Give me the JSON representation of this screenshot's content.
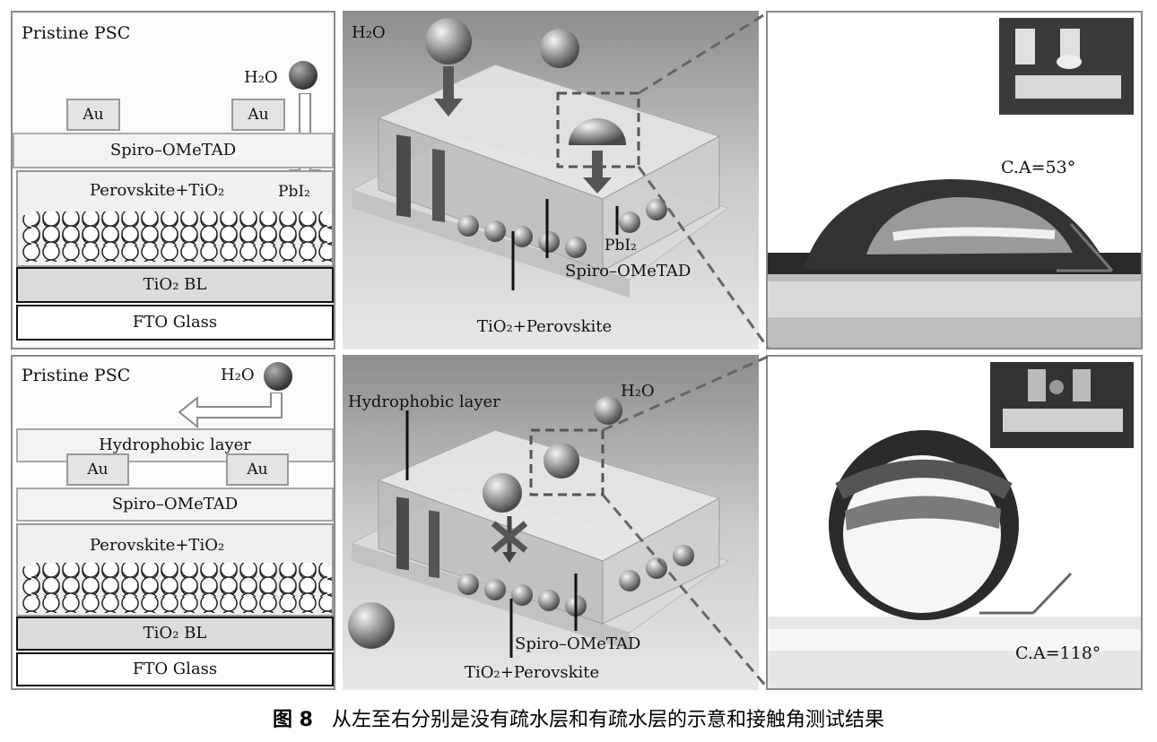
{
  "top_row": {
    "schematic": {
      "title": "Pristine PSC",
      "water": "H₂O",
      "au_left": "Au",
      "au_right": "Au",
      "spiro": "Spiro–OMeTAD",
      "perovskite": "Perovskite+TiO₂",
      "pbi2": "PbI₂",
      "tio2_bl": "TiO₂ BL",
      "fto": "FTO Glass"
    },
    "render": {
      "water": "H₂O",
      "pbi2": "PbI₂",
      "spiro": "Spiro–OMeTAD",
      "tio2_perovskite": "TiO₂+Perovskite"
    },
    "photo": {
      "contact_angle": "C.A=53°"
    }
  },
  "bottom_row": {
    "schematic": {
      "title": "Pristine PSC",
      "water": "H₂O",
      "hydrophobic": "Hydrophobic layer",
      "au_left": "Au",
      "au_right": "Au",
      "spiro": "Spiro–OMeTAD",
      "perovskite": "Perovskite+TiO₂",
      "tio2_bl": "TiO₂ BL",
      "fto": "FTO Glass"
    },
    "render": {
      "hydrophobic": "Hydrophobic layer",
      "water": "H₂O",
      "spiro": "Spiro–OMeTAD",
      "tio2_perovskite": "TiO₂+Perovskite"
    },
    "photo": {
      "contact_angle": "C.A=118°"
    }
  },
  "caption": {
    "figure_label": "图 8",
    "text": "从左至右分别是没有疏水层和有疏水层的示意和接触角测试结果"
  },
  "colors": {
    "frame": "#8a8a8a",
    "droplet": "#555555",
    "layer_gray": "#dcdcdc"
  }
}
